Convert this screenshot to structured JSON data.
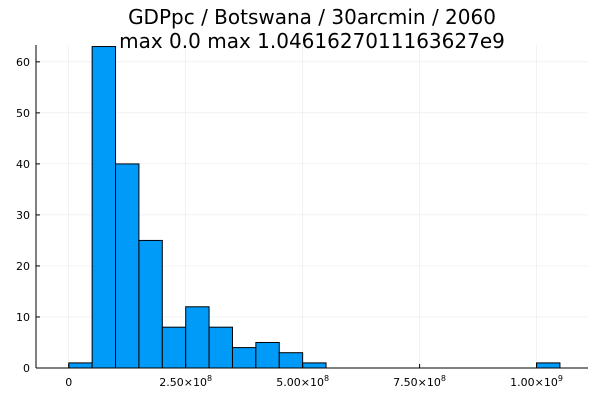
{
  "chart_data": {
    "type": "bar",
    "title": "GDPpc / Botswana / 30arcmin / 2060",
    "subtitle": "max 0.0  max 1.0461627011163627e9",
    "xlabel": "",
    "ylabel": "",
    "xlim": [
      -70000000,
      1110000000
    ],
    "ylim": [
      0,
      63.3
    ],
    "grid": true,
    "legend": "none",
    "bar_color": "#009af9",
    "bin_width": 50000000,
    "bins": [
      {
        "start": 0,
        "end": 50000000,
        "count": 1
      },
      {
        "start": 50000000,
        "end": 100000000,
        "count": 63
      },
      {
        "start": 100000000,
        "end": 150000000,
        "count": 40
      },
      {
        "start": 150000000,
        "end": 200000000,
        "count": 25
      },
      {
        "start": 200000000,
        "end": 250000000,
        "count": 8
      },
      {
        "start": 250000000,
        "end": 300000000,
        "count": 12
      },
      {
        "start": 300000000,
        "end": 350000000,
        "count": 8
      },
      {
        "start": 350000000,
        "end": 400000000,
        "count": 4
      },
      {
        "start": 400000000,
        "end": 450000000,
        "count": 5
      },
      {
        "start": 450000000,
        "end": 500000000,
        "count": 3
      },
      {
        "start": 500000000,
        "end": 550000000,
        "count": 1
      },
      {
        "start": 1000000000,
        "end": 1050000000,
        "count": 1
      }
    ],
    "y_ticks": [
      {
        "value": 0,
        "label": "0"
      },
      {
        "value": 10,
        "label": "10"
      },
      {
        "value": 20,
        "label": "20"
      },
      {
        "value": 30,
        "label": "30"
      },
      {
        "value": 40,
        "label": "40"
      },
      {
        "value": 50,
        "label": "50"
      },
      {
        "value": 60,
        "label": "60"
      }
    ],
    "x_ticks": [
      {
        "value": 0,
        "mant": "0",
        "exp": ""
      },
      {
        "value": 250000000,
        "mant": "2.50×10",
        "exp": "8"
      },
      {
        "value": 500000000,
        "mant": "5.00×10",
        "exp": "8"
      },
      {
        "value": 750000000,
        "mant": "7.50×10",
        "exp": "8"
      },
      {
        "value": 1000000000,
        "mant": "1.00×10",
        "exp": "9"
      }
    ]
  }
}
